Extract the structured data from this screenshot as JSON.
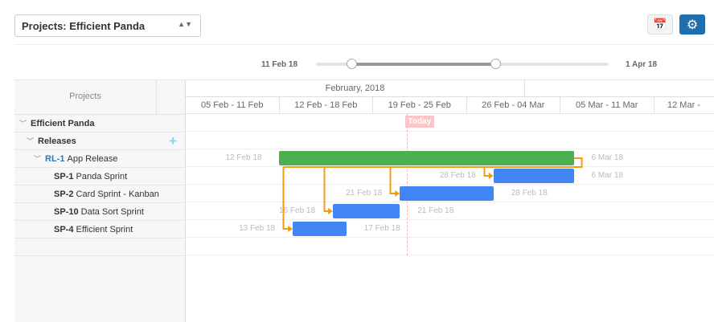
{
  "project_select": {
    "value": "Projects: Efficient Panda"
  },
  "toolbar": {
    "calendar_icon": "calendar-icon",
    "settings_icon": "gear-icon",
    "accent": "#1e6fb0"
  },
  "range": {
    "start": "11 Feb 18",
    "end": "1 Apr 18",
    "low_fraction": 0.06,
    "high_fraction": 0.57
  },
  "tree": {
    "header": "Projects",
    "items": [
      {
        "label": "Efficient Panda",
        "level": 0
      },
      {
        "label": "Releases",
        "level": 1
      },
      {
        "code": "RL-1",
        "label": "App Release",
        "level": 2
      },
      {
        "code": "SP-1",
        "label": "Panda Sprint",
        "level": 3
      },
      {
        "code": "SP-2",
        "label": "Card Sprint - Kanban",
        "level": 3
      },
      {
        "code": "SP-10",
        "label": "Data Sort Sprint",
        "level": 3
      },
      {
        "code": "SP-4",
        "label": "Efficient Sprint",
        "level": 3
      }
    ]
  },
  "timeline": {
    "month": "February, 2018",
    "weeks": [
      "05 Feb - 11 Feb",
      "12 Feb - 18 Feb",
      "19 Feb - 25 Feb",
      "26 Feb - 04 Mar",
      "05 Mar - 11 Mar",
      "12 Mar -"
    ],
    "today": "Today"
  },
  "bars": [
    {
      "id": "RL-1",
      "row": 2,
      "start": "12 Feb 18",
      "end": "6 Mar 18",
      "s": 7,
      "e": 29,
      "color": "#4caf50"
    },
    {
      "id": "SP-1",
      "row": 3,
      "start": "28 Feb 18",
      "end": "6 Mar 18",
      "s": 23,
      "e": 29,
      "color": "#4285f4"
    },
    {
      "id": "SP-2",
      "row": 4,
      "start": "21 Feb 18",
      "end": "28 Feb 18",
      "s": 16,
      "e": 23,
      "color": "#4285f4"
    },
    {
      "id": "SP-10",
      "row": 5,
      "start": "16 Feb 18",
      "end": "21 Feb 18",
      "s": 11,
      "e": 16,
      "color": "#4285f4"
    },
    {
      "id": "SP-4",
      "row": 6,
      "start": "13 Feb 18",
      "end": "17 Feb 18",
      "s": 8,
      "e": 12,
      "color": "#4285f4"
    }
  ],
  "dependency_color": "#f39c12"
}
